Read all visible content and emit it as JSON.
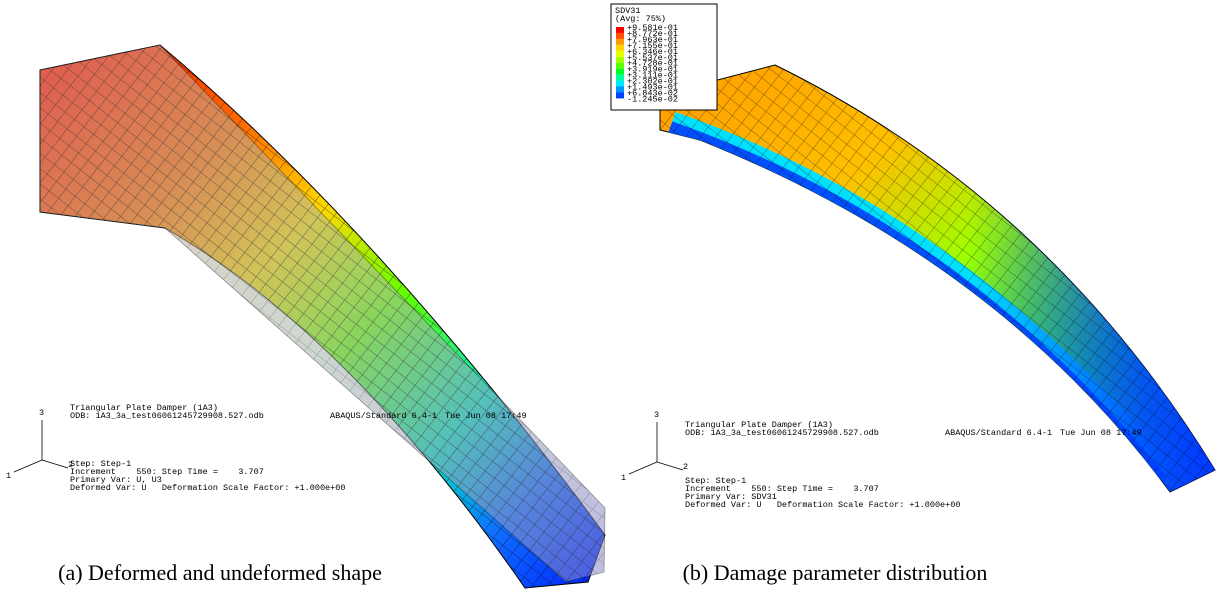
{
  "panels": [
    {
      "info": {
        "title": "Triangular Plate Damper (1A3)",
        "odb": "ODB: 1A3_3a_test06061245729908.527.odb",
        "version": "ABAQUS/Standard 6.4-1",
        "date": "Tue Jun 08 17:49",
        "step": "Step: Step-1",
        "increment": "Increment    550: Step Time =    3.707",
        "primary_var": "Primary Var: U, U3",
        "deformed_var": "Deformed Var: U   Deformation Scale Factor: +1.000e+00"
      },
      "triad": [
        "3",
        "1",
        "2"
      ],
      "caption": "(a) Deformed and undeformed shape"
    },
    {
      "legend": {
        "title": "SDV31",
        "subtitle": "(Avg: 75%)",
        "labels": [
          "+9.581e-01",
          "+8.772e-01",
          "+7.963e-01",
          "+7.155e-01",
          "+6.346e-01",
          "+5.537e-01",
          "+4.728e-01",
          "+3.919e-01",
          "+3.111e-01",
          "+2.302e-01",
          "+1.493e-01",
          "+6.843e-02",
          "-1.245e-02"
        ],
        "colors": [
          "#ff0000",
          "#ff4f00",
          "#ff9a00",
          "#ffd200",
          "#e8ff00",
          "#a8ff00",
          "#5cff00",
          "#00ff28",
          "#00ff9c",
          "#00e8ff",
          "#0096ff",
          "#0040ff"
        ]
      },
      "info": {
        "title": "Triangular Plate Damper (1A3)",
        "odb": "ODB: 1A3_3a_test06061245729908.527.odb",
        "version": "ABAQUS/Standard 6.4-1",
        "date": "Tue Jun 08 17:49",
        "step": "Step: Step-1",
        "increment": "Increment    550: Step Time =    3.707",
        "primary_var": "Primary Var: SDV31",
        "deformed_var": "Deformed Var: U   Deformation Scale Factor: +1.000e+00"
      },
      "triad": [
        "3",
        "1",
        "2"
      ],
      "caption": "(b) Damage parameter distribution"
    }
  ]
}
